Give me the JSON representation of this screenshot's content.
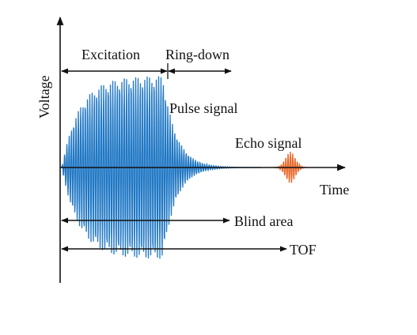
{
  "labels": {
    "excitation": "Excitation",
    "ring_down": "Ring-down",
    "voltage": "Voltage",
    "pulse_signal": "Pulse signal",
    "echo_signal": "Echo signal",
    "time": "Time",
    "blind_area": "Blind area",
    "tof": "TOF"
  },
  "colors": {
    "pulse": "#1f77c4",
    "echo": "#e8692a",
    "axis": "#111111",
    "background": "#ffffff"
  }
}
